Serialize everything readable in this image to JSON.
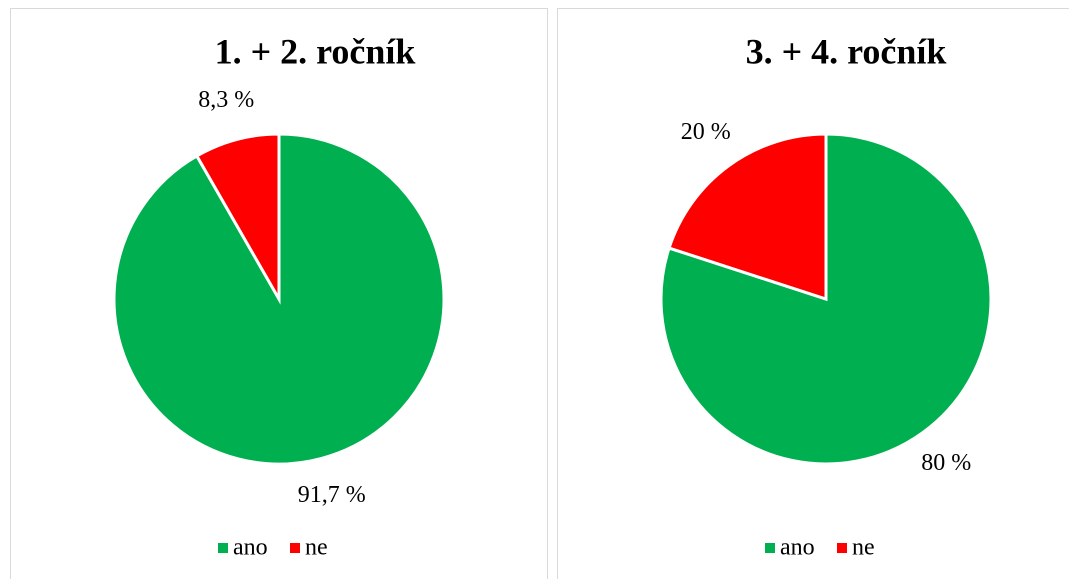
{
  "chart_data": [
    {
      "type": "pie",
      "title": "1. + 2. ročník",
      "categories": [
        "ano",
        "ne"
      ],
      "values": [
        91.7,
        8.3
      ],
      "value_labels": [
        "91,7 %",
        "8,3 %"
      ],
      "colors": [
        "#00b050",
        "#ff0000"
      ],
      "legend": "bottom"
    },
    {
      "type": "pie",
      "title": "3. + 4. ročník",
      "categories": [
        "ano",
        "ne"
      ],
      "values": [
        80,
        20
      ],
      "value_labels": [
        "80 %",
        "20 %"
      ],
      "colors": [
        "#00b050",
        "#ff0000"
      ],
      "legend": "bottom"
    }
  ]
}
